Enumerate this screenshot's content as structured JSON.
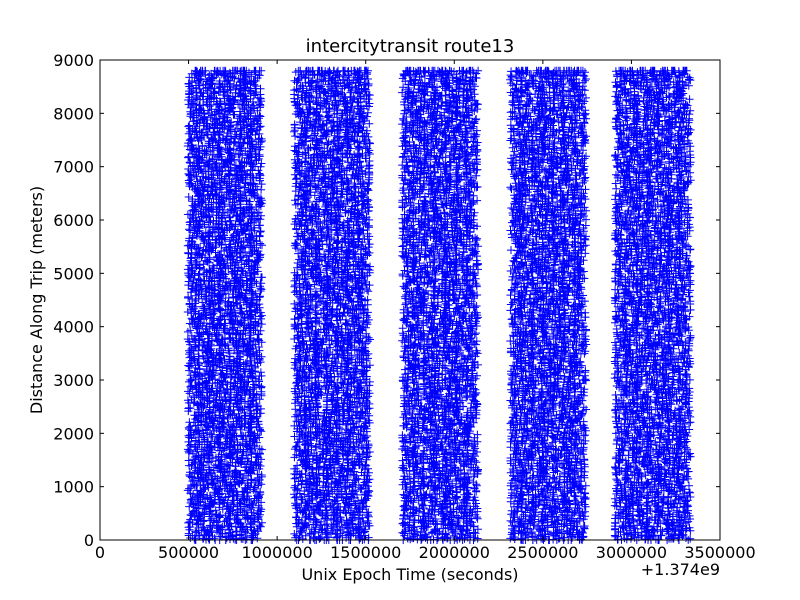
{
  "chart_data": {
    "type": "scatter",
    "title": "intercitytransit route13",
    "xlabel": "Unix Epoch Time (seconds)",
    "ylabel": "Distance Along Trip (meters)",
    "x_offset_label": "+1.374e9",
    "xlim": [
      0,
      3500000
    ],
    "ylim": [
      0,
      9000
    ],
    "xticks": [
      0,
      500000,
      1000000,
      1500000,
      2000000,
      2500000,
      3000000,
      3500000
    ],
    "yticks": [
      0,
      1000,
      2000,
      3000,
      4000,
      5000,
      6000,
      7000,
      8000,
      9000
    ],
    "xtick_labels": [
      "0",
      "500000",
      "1000000",
      "1500000",
      "2000000",
      "2500000",
      "3000000",
      "3500000"
    ],
    "ytick_labels": [
      "0",
      "1000",
      "2000",
      "3000",
      "4000",
      "5000",
      "6000",
      "7000",
      "8000",
      "9000"
    ],
    "marker": "+",
    "marker_color": "#0000ff",
    "grid": false,
    "legend": "none",
    "series": [
      {
        "clusters": [
          {
            "x_range": [
              500000,
              910000
            ],
            "y_range": [
              0,
              8800
            ]
          },
          {
            "x_range": [
              1100000,
              1520000
            ],
            "y_range": [
              0,
              8800
            ]
          },
          {
            "x_range": [
              1710000,
              2130000
            ],
            "y_range": [
              0,
              8800
            ]
          },
          {
            "x_range": [
              2320000,
              2740000
            ],
            "y_range": [
              0,
              8800
            ]
          },
          {
            "x_range": [
              2910000,
              3330000
            ],
            "y_range": [
              0,
              8800
            ]
          }
        ]
      }
    ]
  }
}
